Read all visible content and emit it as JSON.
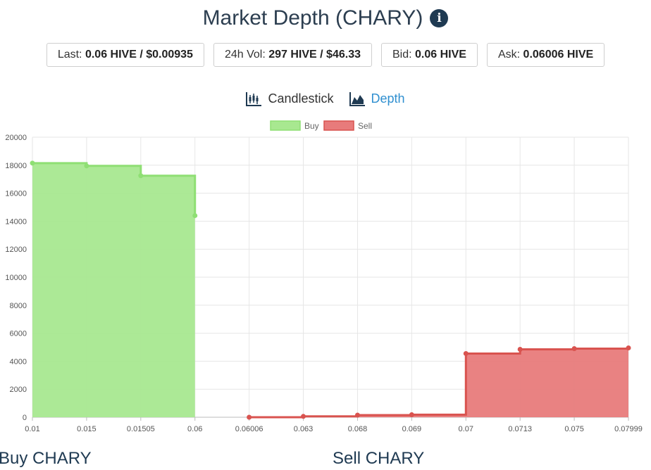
{
  "header": {
    "title": "Market Depth (CHARY)",
    "info_icon": "info-circle-icon"
  },
  "stats": [
    {
      "label": "Last:",
      "value": "0.06 HIVE / $0.00935"
    },
    {
      "label": "24h Vol:",
      "value": "297 HIVE / $46.33"
    },
    {
      "label": "Bid:",
      "value": "0.06 HIVE"
    },
    {
      "label": "Ask:",
      "value": "0.06006 HIVE"
    }
  ],
  "views": {
    "candlestick": "Candlestick",
    "depth": "Depth",
    "active": "depth"
  },
  "sections": {
    "buy": "Buy CHARY",
    "sell": "Sell CHARY"
  },
  "chart_data": {
    "type": "area",
    "categories": [
      "0.01",
      "0.015",
      "0.01505",
      "0.06",
      "0.06006",
      "0.063",
      "0.068",
      "0.069",
      "0.07",
      "0.0713",
      "0.075",
      "0.07999"
    ],
    "ylim": [
      0,
      20000
    ],
    "yticks": [
      0,
      2000,
      4000,
      6000,
      8000,
      10000,
      12000,
      14000,
      16000,
      18000,
      20000
    ],
    "grid": true,
    "legend_position": "top-center",
    "series": [
      {
        "name": "Buy",
        "color": "#a8e890",
        "line_color": "#8fdf74",
        "values": [
          18150,
          17950,
          17250,
          14400,
          null,
          null,
          null,
          null,
          null,
          null,
          null,
          null
        ]
      },
      {
        "name": "Sell",
        "color": "#e87b7b",
        "line_color": "#d9534f",
        "values": [
          null,
          null,
          null,
          null,
          0,
          60,
          150,
          180,
          4550,
          4850,
          4900,
          4950
        ]
      }
    ]
  }
}
